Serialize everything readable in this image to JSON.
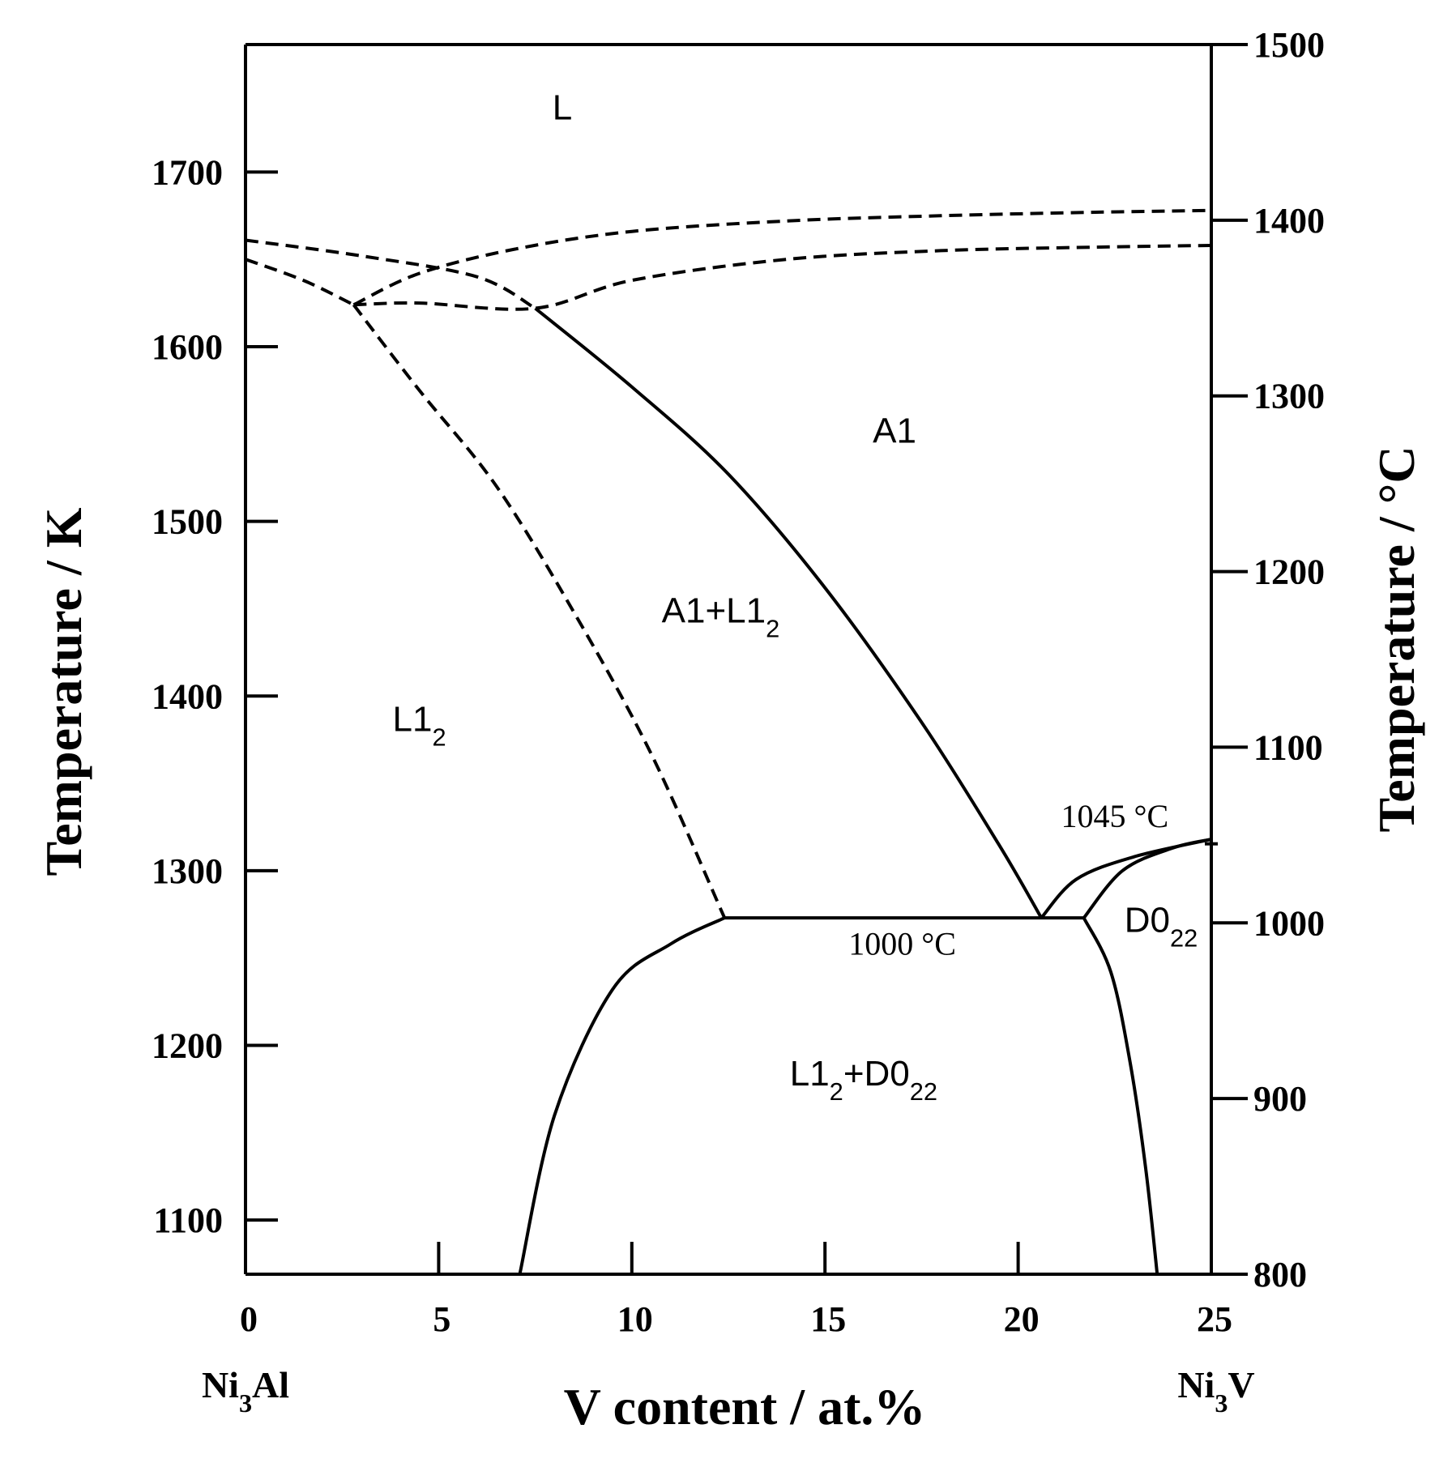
{
  "chart_data": {
    "type": "phase-diagram",
    "xlabel": "V content / at.%",
    "ylabel_left": "Temperature / K",
    "ylabel_right": "Temperature / °C",
    "xlim": [
      0,
      25
    ],
    "ylim_K": [
      1069,
      1773
    ],
    "ylim_C": [
      800,
      1500
    ],
    "x_ticks": [
      0,
      5,
      10,
      15,
      20,
      25
    ],
    "y_ticks_K": [
      1100,
      1200,
      1300,
      1400,
      1500,
      1600,
      1700
    ],
    "y_ticks_C": [
      800,
      900,
      1000,
      1100,
      1200,
      1300,
      1400,
      1500
    ],
    "x_endpoints": [
      {
        "text": "Ni₃Al",
        "x": 0
      },
      {
        "text": "Ni₃V",
        "x": 25
      }
    ],
    "phase_labels": [
      {
        "text": "L",
        "x": 8.2,
        "y_K": 1730
      },
      {
        "text": "A1",
        "x": 16.8,
        "y_K": 1545
      },
      {
        "text": "A1+L1₂",
        "x": 12.3,
        "y_K": 1442
      },
      {
        "text": "L1₂",
        "x": 4.5,
        "y_K": 1380
      },
      {
        "text": "L1₂+D0₂₂",
        "x": 16.0,
        "y_K": 1177
      },
      {
        "text": "D0₂₂",
        "x": 23.7,
        "y_K": 1265
      }
    ],
    "annotations": [
      {
        "text": "1000 °C",
        "x": 17.0,
        "y_K": 1252
      },
      {
        "text": "1045 °C",
        "x": 22.5,
        "y_K": 1325
      }
    ],
    "boundaries": [
      {
        "style": "dashed",
        "points": [
          [
            0,
            1661
          ],
          [
            3.0,
            1652
          ],
          [
            6.0,
            1640
          ],
          [
            7.5,
            1622
          ]
        ]
      },
      {
        "style": "dashed",
        "points": [
          [
            0,
            1650
          ],
          [
            1.5,
            1638
          ],
          [
            2.8,
            1624
          ]
        ]
      },
      {
        "style": "dashed",
        "points": [
          [
            2.8,
            1624
          ],
          [
            4.5,
            1642
          ],
          [
            7.0,
            1656
          ],
          [
            10.0,
            1666
          ],
          [
            14.0,
            1672
          ],
          [
            18.0,
            1675
          ],
          [
            22.0,
            1677
          ],
          [
            25.0,
            1678
          ]
        ]
      },
      {
        "style": "dashed",
        "points": [
          [
            2.8,
            1624
          ],
          [
            4.5,
            1625
          ],
          [
            7.5,
            1622
          ],
          [
            10.0,
            1638
          ],
          [
            14.0,
            1650
          ],
          [
            18.0,
            1655
          ],
          [
            22.0,
            1657
          ],
          [
            25.0,
            1658
          ]
        ]
      },
      {
        "style": "dashed",
        "points": [
          [
            2.8,
            1624
          ],
          [
            4.5,
            1575
          ],
          [
            6.5,
            1520
          ],
          [
            8.5,
            1448
          ],
          [
            10.5,
            1367
          ],
          [
            12.4,
            1273
          ]
        ]
      },
      {
        "style": "solid",
        "points": [
          [
            7.5,
            1622
          ],
          [
            10.0,
            1577
          ],
          [
            12.5,
            1527
          ],
          [
            15.0,
            1462
          ],
          [
            17.5,
            1385
          ],
          [
            19.5,
            1315
          ],
          [
            20.6,
            1273
          ]
        ]
      },
      {
        "style": "solid",
        "points": [
          [
            12.4,
            1273
          ],
          [
            21.7,
            1273
          ]
        ]
      },
      {
        "style": "solid",
        "points": [
          [
            7.1,
            1069
          ],
          [
            8.0,
            1160
          ],
          [
            9.5,
            1232
          ],
          [
            11.0,
            1258
          ],
          [
            12.4,
            1273
          ]
        ]
      },
      {
        "style": "solid",
        "points": [
          [
            21.7,
            1273
          ],
          [
            22.4,
            1242
          ],
          [
            22.9,
            1190
          ],
          [
            23.3,
            1130
          ],
          [
            23.6,
            1069
          ]
        ]
      },
      {
        "style": "solid",
        "points": [
          [
            20.6,
            1273
          ],
          [
            21.5,
            1295
          ],
          [
            23.0,
            1308
          ],
          [
            25.0,
            1318
          ]
        ]
      },
      {
        "style": "solid",
        "points": [
          [
            21.7,
            1273
          ],
          [
            22.7,
            1300
          ],
          [
            24.0,
            1313
          ],
          [
            25.0,
            1318
          ]
        ]
      }
    ]
  }
}
